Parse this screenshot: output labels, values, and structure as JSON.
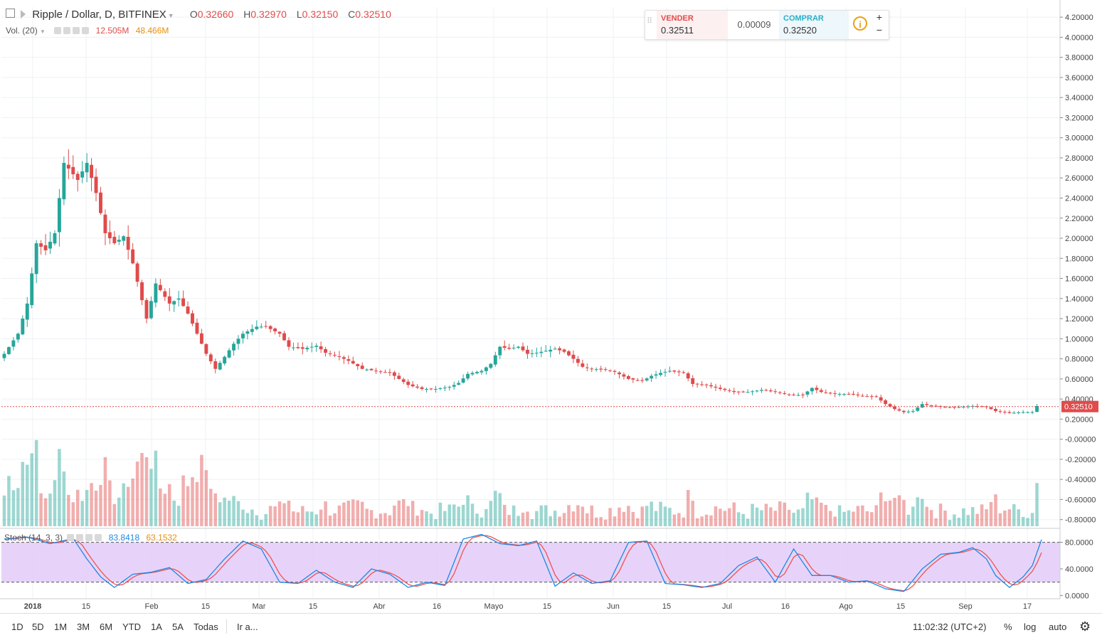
{
  "header": {
    "symbol_title": "Ripple / Dollar, D, BITFINEX",
    "ohlc": [
      {
        "key": "O",
        "value": "0.32660"
      },
      {
        "key": "H",
        "value": "0.32970"
      },
      {
        "key": "L",
        "value": "0.32150"
      },
      {
        "key": "C",
        "value": "0.32510"
      }
    ],
    "volume_label": "Vol. (20)",
    "volume_value_1": "12.505M",
    "volume_value_2": "48.466M",
    "stoch_label": "Stoch (14, 3, 3)",
    "stoch_k": "83.8418",
    "stoch_d": "63.1532"
  },
  "trade_panel": {
    "sell_label": "VENDER",
    "sell_price": "0.32511",
    "spread": "0.00009",
    "buy_label": "COMPRAR",
    "buy_price": "0.32520",
    "info_icon": "i",
    "plus_label": "+",
    "minus_label": "−"
  },
  "timeframes": [
    "1D",
    "5D",
    "1M",
    "3M",
    "6M",
    "YTD",
    "1A",
    "5A",
    "Todas"
  ],
  "goto_label": "Ir a...",
  "clock": "11:02:32 (UTC+2)",
  "scale_buttons": [
    "%",
    "log",
    "auto"
  ],
  "settings_icon": "gear-icon",
  "colors": {
    "up": "#26a69a",
    "down": "#e04b4b",
    "stoch_band": "#e1c8f7",
    "stoch_k_line": "#1e88e5",
    "stoch_d_line": "#ef5350",
    "last_price_line": "#e04b4b"
  },
  "chart_data": {
    "type": "candlestick",
    "x_tick_labels": [
      "2018",
      "15",
      "Feb",
      "15",
      "Mar",
      "15",
      "Abr",
      "16",
      "Mayo",
      "15",
      "Jun",
      "15",
      "Jul",
      "16",
      "Ago",
      "15",
      "Sep",
      "17"
    ],
    "y_tick_labels": [
      "4.20000",
      "4.00000",
      "3.80000",
      "3.60000",
      "3.40000",
      "3.20000",
      "3.00000",
      "2.80000",
      "2.60000",
      "2.40000",
      "2.20000",
      "2.00000",
      "1.80000",
      "1.60000",
      "1.40000",
      "1.20000",
      "1.00000",
      "0.80000",
      "0.60000",
      "0.40000",
      "0.20000",
      "-0.00000",
      "-0.20000",
      "-0.40000",
      "-0.60000",
      "-0.80000"
    ],
    "stoch_y_tick_labels": [
      "80.0000",
      "40.0000",
      "0.0000"
    ],
    "last_price": "0.32510",
    "price_anchors": [
      {
        "i": 0,
        "v": 0.85
      },
      {
        "i": 3,
        "v": 1.05
      },
      {
        "i": 5,
        "v": 1.35
      },
      {
        "i": 7,
        "v": 1.95
      },
      {
        "i": 9,
        "v": 1.88
      },
      {
        "i": 11,
        "v": 2.05
      },
      {
        "i": 13,
        "v": 2.75
      },
      {
        "i": 16,
        "v": 2.58
      },
      {
        "i": 18,
        "v": 2.75
      },
      {
        "i": 20,
        "v": 2.45
      },
      {
        "i": 22,
        "v": 2.05
      },
      {
        "i": 24,
        "v": 1.95
      },
      {
        "i": 26,
        "v": 2.02
      },
      {
        "i": 28,
        "v": 1.75
      },
      {
        "i": 31,
        "v": 1.2
      },
      {
        "i": 33,
        "v": 1.55
      },
      {
        "i": 36,
        "v": 1.35
      },
      {
        "i": 38,
        "v": 1.4
      },
      {
        "i": 40,
        "v": 1.25
      },
      {
        "i": 42,
        "v": 1.05
      },
      {
        "i": 44,
        "v": 0.85
      },
      {
        "i": 46,
        "v": 0.7
      },
      {
        "i": 48,
        "v": 0.82
      },
      {
        "i": 50,
        "v": 0.95
      },
      {
        "i": 52,
        "v": 1.05
      },
      {
        "i": 55,
        "v": 1.12
      },
      {
        "i": 57,
        "v": 1.12
      },
      {
        "i": 60,
        "v": 1.05
      },
      {
        "i": 62,
        "v": 0.92
      },
      {
        "i": 65,
        "v": 0.9
      },
      {
        "i": 68,
        "v": 0.93
      },
      {
        "i": 70,
        "v": 0.86
      },
      {
        "i": 73,
        "v": 0.82
      },
      {
        "i": 75,
        "v": 0.78
      },
      {
        "i": 78,
        "v": 0.7
      },
      {
        "i": 81,
        "v": 0.68
      },
      {
        "i": 84,
        "v": 0.66
      },
      {
        "i": 86,
        "v": 0.6
      },
      {
        "i": 88,
        "v": 0.54
      },
      {
        "i": 91,
        "v": 0.5
      },
      {
        "i": 94,
        "v": 0.5
      },
      {
        "i": 97,
        "v": 0.52
      },
      {
        "i": 99,
        "v": 0.56
      },
      {
        "i": 101,
        "v": 0.65
      },
      {
        "i": 104,
        "v": 0.68
      },
      {
        "i": 106,
        "v": 0.75
      },
      {
        "i": 108,
        "v": 0.92
      },
      {
        "i": 110,
        "v": 0.9
      },
      {
        "i": 112,
        "v": 0.92
      },
      {
        "i": 114,
        "v": 0.85
      },
      {
        "i": 116,
        "v": 0.86
      },
      {
        "i": 118,
        "v": 0.88
      },
      {
        "i": 120,
        "v": 0.9
      },
      {
        "i": 122,
        "v": 0.87
      },
      {
        "i": 124,
        "v": 0.8
      },
      {
        "i": 126,
        "v": 0.72
      },
      {
        "i": 128,
        "v": 0.7
      },
      {
        "i": 131,
        "v": 0.69
      },
      {
        "i": 133,
        "v": 0.67
      },
      {
        "i": 136,
        "v": 0.6
      },
      {
        "i": 139,
        "v": 0.58
      },
      {
        "i": 141,
        "v": 0.63
      },
      {
        "i": 143,
        "v": 0.66
      },
      {
        "i": 145,
        "v": 0.68
      },
      {
        "i": 148,
        "v": 0.66
      },
      {
        "i": 150,
        "v": 0.55
      },
      {
        "i": 153,
        "v": 0.54
      },
      {
        "i": 156,
        "v": 0.5
      },
      {
        "i": 159,
        "v": 0.47
      },
      {
        "i": 162,
        "v": 0.47
      },
      {
        "i": 165,
        "v": 0.49
      },
      {
        "i": 168,
        "v": 0.47
      },
      {
        "i": 171,
        "v": 0.44
      },
      {
        "i": 174,
        "v": 0.44
      },
      {
        "i": 176,
        "v": 0.51
      },
      {
        "i": 178,
        "v": 0.47
      },
      {
        "i": 181,
        "v": 0.45
      },
      {
        "i": 184,
        "v": 0.45
      },
      {
        "i": 187,
        "v": 0.43
      },
      {
        "i": 190,
        "v": 0.42
      },
      {
        "i": 192,
        "v": 0.35
      },
      {
        "i": 194,
        "v": 0.3
      },
      {
        "i": 196,
        "v": 0.27
      },
      {
        "i": 198,
        "v": 0.28
      },
      {
        "i": 200,
        "v": 0.35
      },
      {
        "i": 202,
        "v": 0.33
      },
      {
        "i": 205,
        "v": 0.32
      },
      {
        "i": 208,
        "v": 0.32
      },
      {
        "i": 211,
        "v": 0.33
      },
      {
        "i": 214,
        "v": 0.32
      },
      {
        "i": 216,
        "v": 0.28
      },
      {
        "i": 219,
        "v": 0.26
      },
      {
        "i": 222,
        "v": 0.27
      },
      {
        "i": 224,
        "v": 0.27
      },
      {
        "i": 225,
        "v": 0.33
      }
    ],
    "candle_count": 226,
    "ylim": [
      -0.88,
      4.3
    ],
    "stoch_ylim": [
      -5,
      100
    ],
    "stoch_band": [
      20,
      80
    ],
    "stoch_k_anchors": [
      {
        "i": 0,
        "v": 85
      },
      {
        "i": 5,
        "v": 88
      },
      {
        "i": 10,
        "v": 78
      },
      {
        "i": 15,
        "v": 86
      },
      {
        "i": 18,
        "v": 55
      },
      {
        "i": 21,
        "v": 28
      },
      {
        "i": 24,
        "v": 12
      },
      {
        "i": 28,
        "v": 32
      },
      {
        "i": 32,
        "v": 35
      },
      {
        "i": 36,
        "v": 42
      },
      {
        "i": 40,
        "v": 18
      },
      {
        "i": 44,
        "v": 24
      },
      {
        "i": 48,
        "v": 55
      },
      {
        "i": 52,
        "v": 82
      },
      {
        "i": 56,
        "v": 70
      },
      {
        "i": 60,
        "v": 20
      },
      {
        "i": 64,
        "v": 18
      },
      {
        "i": 68,
        "v": 38
      },
      {
        "i": 72,
        "v": 20
      },
      {
        "i": 76,
        "v": 12
      },
      {
        "i": 80,
        "v": 40
      },
      {
        "i": 84,
        "v": 32
      },
      {
        "i": 88,
        "v": 12
      },
      {
        "i": 92,
        "v": 20
      },
      {
        "i": 96,
        "v": 15
      },
      {
        "i": 100,
        "v": 85
      },
      {
        "i": 104,
        "v": 92
      },
      {
        "i": 108,
        "v": 78
      },
      {
        "i": 112,
        "v": 75
      },
      {
        "i": 116,
        "v": 82
      },
      {
        "i": 120,
        "v": 14
      },
      {
        "i": 124,
        "v": 34
      },
      {
        "i": 128,
        "v": 18
      },
      {
        "i": 132,
        "v": 22
      },
      {
        "i": 136,
        "v": 80
      },
      {
        "i": 140,
        "v": 82
      },
      {
        "i": 144,
        "v": 18
      },
      {
        "i": 148,
        "v": 16
      },
      {
        "i": 152,
        "v": 12
      },
      {
        "i": 156,
        "v": 18
      },
      {
        "i": 160,
        "v": 45
      },
      {
        "i": 164,
        "v": 58
      },
      {
        "i": 168,
        "v": 20
      },
      {
        "i": 172,
        "v": 70
      },
      {
        "i": 176,
        "v": 30
      },
      {
        "i": 180,
        "v": 30
      },
      {
        "i": 184,
        "v": 20
      },
      {
        "i": 188,
        "v": 22
      },
      {
        "i": 192,
        "v": 10
      },
      {
        "i": 196,
        "v": 6
      },
      {
        "i": 200,
        "v": 40
      },
      {
        "i": 204,
        "v": 62
      },
      {
        "i": 208,
        "v": 65
      },
      {
        "i": 211,
        "v": 72
      },
      {
        "i": 214,
        "v": 55
      },
      {
        "i": 216,
        "v": 30
      },
      {
        "i": 219,
        "v": 12
      },
      {
        "i": 222,
        "v": 28
      },
      {
        "i": 224,
        "v": 45
      },
      {
        "i": 226,
        "v": 84
      }
    ]
  }
}
